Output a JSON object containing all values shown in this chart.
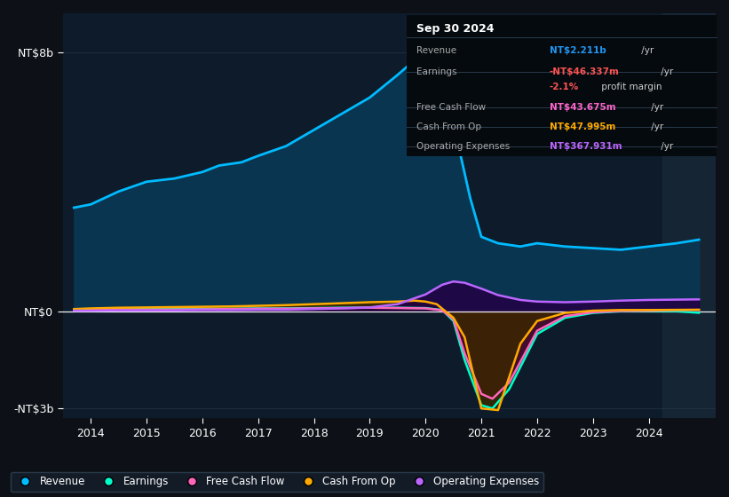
{
  "bg_color": "#0d1117",
  "plot_bg_color": "#0d1b2a",
  "title_box": {
    "date": "Sep 30 2024",
    "rows": [
      {
        "label": "Revenue",
        "value": "NT$2.211b",
        "unit": " /yr",
        "color": "#2196f3"
      },
      {
        "label": "Earnings",
        "value": "-NT$46.337m",
        "unit": " /yr",
        "color": "#ff5252"
      },
      {
        "label": "",
        "value": "-2.1%",
        "unit": " profit margin",
        "color": "#ff5252"
      },
      {
        "label": "Free Cash Flow",
        "value": "NT$43.675m",
        "unit": " /yr",
        "color": "#ff66cc"
      },
      {
        "label": "Cash From Op",
        "value": "NT$47.995m",
        "unit": " /yr",
        "color": "#ffaa00"
      },
      {
        "label": "Operating Expenses",
        "value": "NT$367.931m",
        "unit": " /yr",
        "color": "#bb66ff"
      }
    ]
  },
  "ylabel_top": "NT$8b",
  "ylabel_zero": "NT$0",
  "ylabel_bottom": "-NT$3b",
  "x_min": 2013.5,
  "x_max": 2025.2,
  "y_min": -3.3,
  "y_max": 9.2,
  "years": [
    2014,
    2015,
    2016,
    2017,
    2018,
    2019,
    2020,
    2021,
    2022,
    2023,
    2024
  ],
  "revenue": {
    "x": [
      2013.7,
      2014.0,
      2014.5,
      2015.0,
      2015.5,
      2016.0,
      2016.3,
      2016.7,
      2017.0,
      2017.5,
      2018.0,
      2018.5,
      2019.0,
      2019.5,
      2019.9,
      2020.0,
      2020.2,
      2020.5,
      2020.8,
      2021.0,
      2021.3,
      2021.7,
      2022.0,
      2022.5,
      2023.0,
      2023.5,
      2024.0,
      2024.5,
      2024.9
    ],
    "y": [
      3.2,
      3.3,
      3.7,
      4.0,
      4.1,
      4.3,
      4.5,
      4.6,
      4.8,
      5.1,
      5.6,
      6.1,
      6.6,
      7.3,
      7.9,
      8.0,
      7.5,
      5.8,
      3.5,
      2.3,
      2.1,
      2.0,
      2.1,
      2.0,
      1.95,
      1.9,
      2.0,
      2.1,
      2.211
    ],
    "color": "#00bbff",
    "fill_color": "#0a3550",
    "lw": 2.0
  },
  "earnings": {
    "x": [
      2013.7,
      2014.0,
      2014.5,
      2015.0,
      2015.5,
      2016.0,
      2016.5,
      2017.0,
      2017.5,
      2018.0,
      2018.5,
      2019.0,
      2019.5,
      2020.0,
      2020.3,
      2020.5,
      2020.7,
      2021.0,
      2021.2,
      2021.5,
      2022.0,
      2022.5,
      2023.0,
      2023.5,
      2024.0,
      2024.5,
      2024.9
    ],
    "y": [
      0.05,
      0.06,
      0.07,
      0.07,
      0.07,
      0.08,
      0.08,
      0.09,
      0.09,
      0.1,
      0.11,
      0.11,
      0.11,
      0.1,
      0.04,
      -0.3,
      -1.5,
      -2.9,
      -3.0,
      -2.4,
      -0.7,
      -0.2,
      -0.05,
      0.0,
      0.01,
      0.0,
      -0.046
    ],
    "color": "#00ffcc",
    "fill_color": "#003322",
    "lw": 1.8
  },
  "free_cash_flow": {
    "x": [
      2013.7,
      2014.0,
      2014.5,
      2015.0,
      2015.5,
      2016.0,
      2016.5,
      2017.0,
      2017.5,
      2018.0,
      2018.5,
      2019.0,
      2019.5,
      2020.0,
      2020.3,
      2020.5,
      2020.7,
      2021.0,
      2021.2,
      2021.5,
      2022.0,
      2022.5,
      2023.0,
      2023.5,
      2024.0,
      2024.5,
      2024.9
    ],
    "y": [
      0.04,
      0.04,
      0.05,
      0.05,
      0.05,
      0.06,
      0.07,
      0.08,
      0.08,
      0.09,
      0.1,
      0.11,
      0.1,
      0.09,
      0.03,
      -0.25,
      -1.3,
      -2.55,
      -2.7,
      -2.2,
      -0.6,
      -0.15,
      -0.03,
      0.01,
      0.02,
      0.04,
      0.044
    ],
    "color": "#ff66bb",
    "fill_color": "#5a0033",
    "lw": 1.8
  },
  "cash_from_op": {
    "x": [
      2013.7,
      2014.0,
      2014.5,
      2015.0,
      2015.5,
      2016.0,
      2016.5,
      2017.0,
      2017.5,
      2018.0,
      2018.5,
      2019.0,
      2019.5,
      2019.8,
      2020.0,
      2020.2,
      2020.5,
      2020.7,
      2021.0,
      2021.3,
      2021.7,
      2022.0,
      2022.5,
      2023.0,
      2023.5,
      2024.0,
      2024.5,
      2024.9
    ],
    "y": [
      0.07,
      0.09,
      0.11,
      0.12,
      0.13,
      0.14,
      0.15,
      0.17,
      0.19,
      0.22,
      0.25,
      0.28,
      0.3,
      0.33,
      0.3,
      0.22,
      -0.2,
      -0.8,
      -3.0,
      -3.05,
      -1.0,
      -0.3,
      -0.05,
      0.02,
      0.04,
      0.04,
      0.045,
      0.048
    ],
    "color": "#ffaa00",
    "fill_color": "#3a2500",
    "lw": 1.8
  },
  "op_expenses": {
    "x": [
      2013.7,
      2014.0,
      2014.5,
      2015.0,
      2015.5,
      2016.0,
      2016.5,
      2017.0,
      2017.5,
      2018.0,
      2018.5,
      2019.0,
      2019.5,
      2020.0,
      2020.3,
      2020.5,
      2020.7,
      2021.0,
      2021.3,
      2021.7,
      2022.0,
      2022.5,
      2023.0,
      2023.5,
      2024.0,
      2024.5,
      2024.9
    ],
    "y": [
      0.02,
      0.02,
      0.03,
      0.03,
      0.03,
      0.04,
      0.04,
      0.05,
      0.05,
      0.07,
      0.09,
      0.12,
      0.22,
      0.52,
      0.82,
      0.92,
      0.88,
      0.7,
      0.5,
      0.35,
      0.3,
      0.28,
      0.3,
      0.33,
      0.35,
      0.36,
      0.368
    ],
    "color": "#bb66ff",
    "fill_color": "#220044",
    "lw": 1.8
  },
  "legend": [
    {
      "label": "Revenue",
      "color": "#00bbff"
    },
    {
      "label": "Earnings",
      "color": "#00ffcc"
    },
    {
      "label": "Free Cash Flow",
      "color": "#ff66bb"
    },
    {
      "label": "Cash From Op",
      "color": "#ffaa00"
    },
    {
      "label": "Operating Expenses",
      "color": "#bb66ff"
    }
  ]
}
